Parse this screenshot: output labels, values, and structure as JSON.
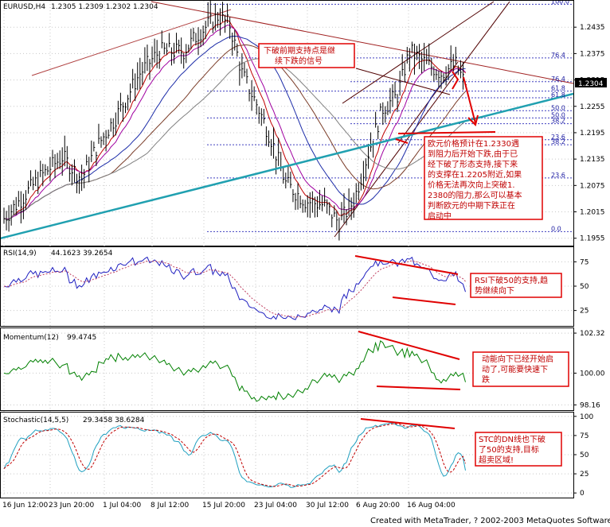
{
  "panes": {
    "price": {
      "title": "EURUSD,H4",
      "values": "1.2305 1.2309 1.2302 1.2304"
    },
    "rsi": {
      "title": "RSI(14,9)",
      "values": "44.1623 39.2654"
    },
    "momentum": {
      "title": "Momentum(12)",
      "values": "99.4745"
    },
    "stochastic": {
      "title": "Stochastic(14,5,5)",
      "values": "29.3458 38.6284"
    }
  },
  "colors": {
    "price_bars": "#000000",
    "trendline": "#20a0b0",
    "annotation": "#e00000",
    "ma_red": "#c00000",
    "ma_purple": "#a000a0",
    "ma_blue": "#1c2ca8",
    "rsi": "#2020c0",
    "momentum": "#008000",
    "stoch_main": "#20a0c0",
    "stoch_signal": "#c00000"
  },
  "chart_data": [
    {
      "type": "candlestick",
      "title": "EURUSD,H4",
      "y_ticks": [
        "1.2435",
        "1.2375",
        "1.2315",
        "1.2255",
        "1.2195",
        "1.2135",
        "1.2075",
        "1.2015",
        "1.1955"
      ],
      "ylim": [
        1.194,
        1.2495
      ],
      "current_price": "1.2304",
      "fib_levels": [
        "100.0",
        "76.4",
        "61.8",
        "50.0",
        "38.2",
        "23.6",
        "0.0",
        "76.4",
        "61.8",
        "50.0",
        "38.2",
        "23.6"
      ],
      "x_ticks": [
        "16 Jun 12:00",
        "23 Jun 20:00",
        "1 Jul 04:00",
        "8 Jul 12:00",
        "15 Jul 20:00",
        "23 Jul 04:00",
        "30 Jul 12:00",
        "6 Aug 20:00",
        "16 Aug 04:00"
      ]
    },
    {
      "type": "line",
      "title": "RSI(14,9)",
      "y_ticks": [
        "75",
        "50",
        "25"
      ],
      "ylim": [
        10,
        90
      ]
    },
    {
      "type": "line",
      "title": "Momentum(12)",
      "y_ticks": [
        "102.32",
        "100.00",
        "98.16"
      ],
      "ylim": [
        97.9,
        102.6
      ]
    },
    {
      "type": "line",
      "title": "Stochastic(14,5,5)",
      "y_ticks": [
        "100",
        "75",
        "50",
        "25",
        "0"
      ],
      "ylim": [
        -5,
        105
      ]
    }
  ],
  "annotations": {
    "main_top": [
      "下破前期支持点是继",
      "续下跌的信号"
    ],
    "main_right": [
      "欧元价格预计在1.2330遇",
      "到阻力后开始下跌,由于已",
      "经下破了形态支持,接下来",
      "的支撑在1.2205附近,如果",
      "价格无法再次向上突破1.",
      "2380的阻力,那么可以基本",
      "判断欧元的中期下跌正在",
      "启动中"
    ],
    "rsi": [
      "RSI下破50的支持,趋",
      "势继续向下"
    ],
    "momentum": [
      "动能向下已经开始启",
      "动了,可能要快速下",
      "跌"
    ],
    "stochastic": [
      "STC的DN线也下破",
      "了50的支持,目标",
      "超卖区域!"
    ]
  },
  "footer": "Created with MetaTrader, ? 2002-2003 MetaQuotes Software Corp."
}
